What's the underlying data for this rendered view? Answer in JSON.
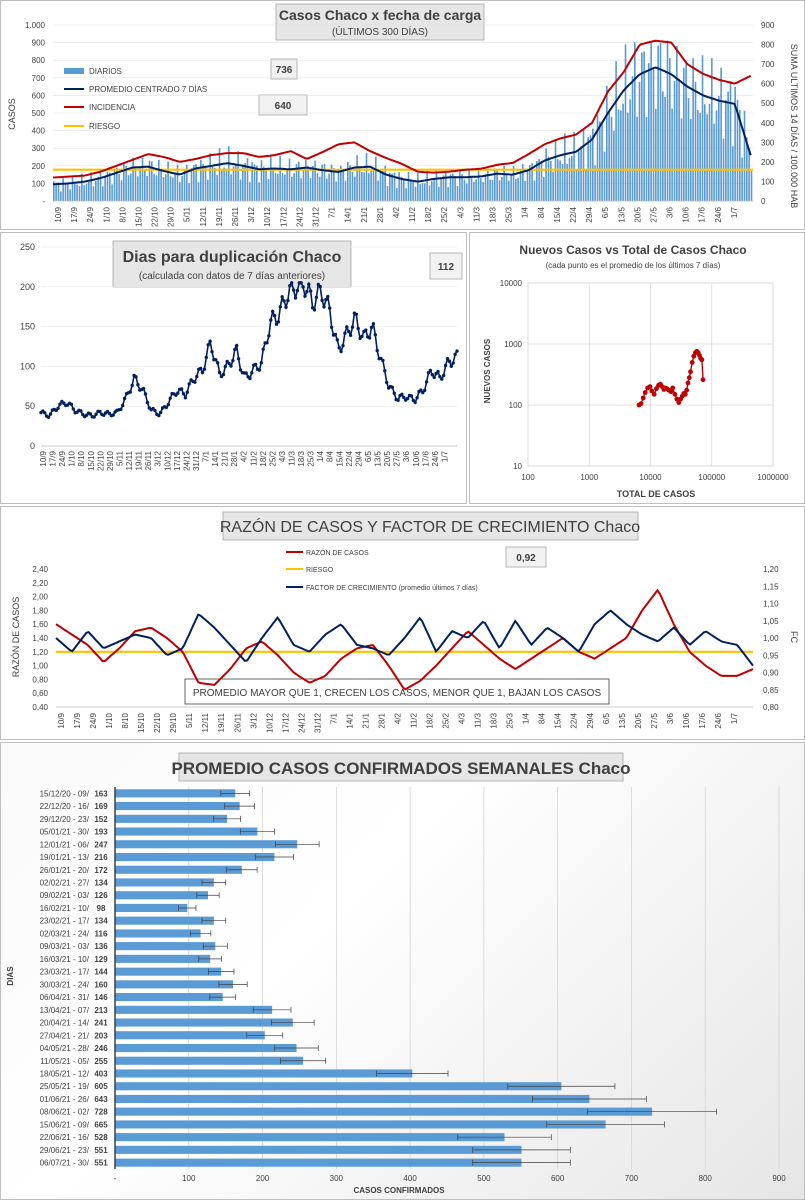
{
  "chart_data": [
    {
      "type": "bar",
      "title": "Casos  Chaco  x fecha de carga",
      "subtitle": "(ÚLTIMOS 300 DÍAS)",
      "ylabel": "CASOS",
      "y2label": "SUMA  ULTIMOS 14 DÍAS / 100.000 HAB",
      "ylim": [
        0,
        1000
      ],
      "y2lim": [
        0,
        900
      ],
      "yticks": [
        "-",
        "100",
        "200",
        "300",
        "400",
        "500",
        "600",
        "700",
        "800",
        "900",
        "1.000"
      ],
      "y2ticks": [
        "0",
        "100",
        "200",
        "300",
        "400",
        "500",
        "600",
        "700",
        "800",
        "900"
      ],
      "xticks": [
        "10/9",
        "17/9",
        "24/9",
        "1/10",
        "8/10",
        "15/10",
        "22/10",
        "29/10",
        "5/11",
        "12/11",
        "19/11",
        "26/11",
        "3/12",
        "10/12",
        "17/12",
        "24/12",
        "31/12",
        "7/1",
        "14/1",
        "21/1",
        "28/1",
        "4/2",
        "11/2",
        "18/2",
        "25/2",
        "4/3",
        "11/3",
        "18/3",
        "25/3",
        "1/4",
        "8/4",
        "15/4",
        "22/4",
        "29/4",
        "6/5",
        "13/5",
        "20/5",
        "27/5",
        "3/6",
        "10/6",
        "17/6",
        "24/6",
        "1/7"
      ],
      "legend": [
        "DIARIOS",
        "PROMEDIO CENTRADO 7 DÍAS",
        "INCIDENCIA",
        "RIESGO"
      ],
      "value_labels": [
        "736",
        "640"
      ],
      "riesgo": 160,
      "series_weekly": {
        "promedio": [
          95,
          100,
          110,
          130,
          160,
          190,
          195,
          170,
          150,
          185,
          200,
          215,
          200,
          180,
          185,
          180,
          190,
          175,
          165,
          190,
          195,
          150,
          125,
          110,
          125,
          135,
          135,
          140,
          155,
          150,
          175,
          230,
          260,
          280,
          350,
          500,
          630,
          720,
          760,
          720,
          650,
          600,
          570,
          552,
          260
        ],
        "incidencia": [
          120,
          125,
          130,
          150,
          180,
          210,
          240,
          225,
          200,
          215,
          235,
          245,
          245,
          225,
          235,
          255,
          215,
          250,
          290,
          300,
          255,
          220,
          190,
          150,
          145,
          150,
          160,
          165,
          185,
          195,
          240,
          290,
          320,
          340,
          400,
          560,
          660,
          800,
          820,
          810,
          700,
          650,
          620,
          600,
          640
        ]
      },
      "colors": {
        "diarios": "#5b9bd5",
        "promedio": "#002060",
        "incidencia": "#c00000",
        "riesgo": "#ffc000"
      }
    },
    {
      "type": "line",
      "title": "Dias para duplicación Chaco",
      "subtitle": "(calculada con datos de 7 días anteriores)",
      "ylim": [
        0,
        250
      ],
      "yticks": [
        "0",
        "50",
        "100",
        "150",
        "200",
        "250"
      ],
      "value_label": "112",
      "xticks": [
        "10/9",
        "17/9",
        "24/9",
        "1/10",
        "8/10",
        "15/10",
        "22/10",
        "29/10",
        "5/11",
        "12/11",
        "19/11",
        "26/11",
        "3/12",
        "10/12",
        "17/12",
        "24/12",
        "31/12",
        "7/1",
        "14/1",
        "21/1",
        "28/1",
        "4/2",
        "11/2",
        "18/2",
        "25/2",
        "4/3",
        "11/3",
        "18/3",
        "25/3",
        "1/4",
        "8/4",
        "15/4",
        "22/4",
        "29/4",
        "6/5",
        "13/5",
        "20/5",
        "27/5",
        "3/6",
        "10/6",
        "17/6",
        "24/6",
        "1/7"
      ],
      "values": [
        42,
        38,
        50,
        55,
        45,
        40,
        38,
        42,
        40,
        42,
        60,
        85,
        70,
        45,
        40,
        55,
        70,
        65,
        85,
        95,
        130,
        90,
        100,
        120,
        85,
        95,
        105,
        155,
        165,
        190,
        200,
        205,
        180,
        195,
        170,
        120,
        140,
        160,
        135,
        150,
        110,
        75,
        60,
        62,
        58,
        70,
        95,
        85,
        105,
        112
      ],
      "color": "#002060"
    },
    {
      "type": "scatter",
      "title": "Nuevos Casos vs Total de Casos Chaco",
      "subtitle": "(cada punto es el promedio de los últimos 7 días)",
      "xlabel": "TOTAL DE CASOS",
      "ylabel": "NUEVOS  CASOS",
      "xscale": "log",
      "yscale": "log",
      "xticks": [
        "100",
        "1000",
        "10000",
        "100000",
        "1000000"
      ],
      "yticks": [
        "10",
        "100",
        "1000",
        "10000"
      ],
      "x": [
        6500,
        7000,
        7600,
        8200,
        9000,
        9800,
        10500,
        11500,
        12500,
        13500,
        14500,
        15500,
        16500,
        17500,
        18500,
        20000,
        21500,
        23000,
        25000,
        27000,
        29000,
        31000,
        33000,
        35000,
        37000,
        39000,
        41000,
        43000,
        45000,
        48000,
        51000,
        54000,
        57000,
        60000,
        63000,
        66000,
        69000,
        72000
      ],
      "y": [
        100,
        105,
        130,
        160,
        190,
        200,
        170,
        150,
        185,
        210,
        220,
        200,
        180,
        190,
        185,
        175,
        165,
        190,
        150,
        125,
        110,
        125,
        140,
        155,
        150,
        175,
        230,
        280,
        350,
        500,
        630,
        720,
        760,
        720,
        650,
        580,
        550,
        260
      ],
      "color": "#c00000"
    },
    {
      "type": "line",
      "title": "RAZÓN DE CASOS Y FACTOR DE CRECIMIENTO Chaco",
      "ylabel": "RAZÓN DE CASOS",
      "y2label": "FC",
      "ylim": [
        0.4,
        2.4
      ],
      "y2lim": [
        0.8,
        1.2
      ],
      "yticks": [
        "0,40",
        "0,60",
        "0,80",
        "1,00",
        "1,20",
        "1,40",
        "1,60",
        "1,80",
        "2,00",
        "2,20",
        "2,40"
      ],
      "y2ticks": [
        "0,80",
        "0,85",
        "0,90",
        "0,95",
        "1,00",
        "1,05",
        "1,10",
        "1,15",
        "1,20"
      ],
      "xticks": [
        "10/9",
        "17/9",
        "24/9",
        "1/10",
        "8/10",
        "15/10",
        "22/10",
        "29/10",
        "5/11",
        "12/11",
        "19/11",
        "26/11",
        "3/12",
        "10/12",
        "17/12",
        "24/12",
        "31/12",
        "7/1",
        "14/1",
        "21/1",
        "28/1",
        "4/2",
        "11/2",
        "18/2",
        "25/2",
        "4/3",
        "11/3",
        "18/3",
        "25/3",
        "1/4",
        "8/4",
        "15/4",
        "22/4",
        "29/4",
        "6/5",
        "13/5",
        "20/5",
        "27/5",
        "3/6",
        "10/6",
        "17/6",
        "24/6",
        "1/7"
      ],
      "legend": [
        "RAZÓN DE CASOS",
        "RIESGO",
        "FACTOR DE CRECIMIENTO (promedio últimos 7 días)"
      ],
      "value_label": "0,92",
      "annotation": "PROMEDIO MAYOR QUE 1, CRECEN LOS CASOS, MENOR QUE 1, BAJAN LOS CASOS",
      "riesgo": 1.2,
      "razon": [
        1.6,
        1.45,
        1.3,
        1.05,
        1.25,
        1.5,
        1.55,
        1.4,
        1.2,
        0.75,
        0.72,
        0.95,
        1.25,
        1.35,
        1.15,
        0.9,
        0.75,
        0.85,
        1.1,
        1.25,
        1.3,
        1.0,
        0.65,
        0.78,
        1.0,
        1.25,
        1.5,
        1.3,
        1.1,
        0.95,
        1.1,
        1.25,
        1.4,
        1.2,
        1.1,
        1.25,
        1.4,
        1.8,
        2.1,
        1.6,
        1.2,
        1.0,
        0.85,
        0.85,
        0.95
      ],
      "fc": [
        1.0,
        0.96,
        1.02,
        0.97,
        0.99,
        1.01,
        1.0,
        0.95,
        0.97,
        1.07,
        1.03,
        0.98,
        0.93,
        1.0,
        1.06,
        0.98,
        0.96,
        1.01,
        1.04,
        0.98,
        0.97,
        0.95,
        1.0,
        1.06,
        0.96,
        1.02,
        1.0,
        1.05,
        0.97,
        1.05,
        0.98,
        1.03,
        1.0,
        0.96,
        1.04,
        1.08,
        1.04,
        1.01,
        0.99,
        1.03,
        0.98,
        1.02,
        0.99,
        0.98,
        0.92
      ],
      "colors": {
        "razon": "#c00000",
        "riesgo": "#ffc000",
        "fc": "#002060"
      }
    },
    {
      "type": "bar",
      "orientation": "horizontal",
      "title": "PROMEDIO CASOS CONFIRMADOS SEMANALES Chaco",
      "xlabel": "CASOS CONFIRMADOS",
      "ylabel": "DIAS",
      "xlim": [
        0,
        900
      ],
      "xticks": [
        "-",
        "100",
        "200",
        "300",
        "400",
        "500",
        "600",
        "700",
        "800",
        "900"
      ],
      "categories": [
        "15/12/20 - 09/12/20",
        "22/12/20 - 16/12/20",
        "29/12/20 - 23/12/20",
        "05/01/21 - 30/12/20",
        "12/01/21 - 06/01/21",
        "19/01/21 - 13/01/21",
        "26/01/21 - 20/01/21",
        "02/02/21 - 27/01/21",
        "09/02/21 - 03/02/21",
        "16/02/21 - 10/02/21",
        "23/02/21 - 17/02/21",
        "02/03/21 - 24/02/21",
        "09/03/21 - 03/03/21",
        "16/03/21 - 10/03/21",
        "23/03/21 - 17/03/21",
        "30/03/21 - 24/03/21",
        "06/04/21 - 31/03/21",
        "13/04/21 - 07/04/21",
        "20/04/21 - 14/04/21",
        "27/04/21 - 21/04/21",
        "04/05/21 - 28/04/21",
        "11/05/21 - 05/05/21",
        "18/05/21 - 12/05/21",
        "25/05/21 - 19/05/21",
        "01/06/21 - 26/05/21",
        "08/06/21 - 02/06/21",
        "15/06/21 - 09/06/21",
        "22/06/21 - 16/06/21",
        "29/06/21 - 23/06/21",
        "06/07/21 - 30/06/21"
      ],
      "values": [
        163,
        169,
        152,
        193,
        247,
        216,
        172,
        134,
        126,
        98,
        134,
        116,
        136,
        129,
        144,
        160,
        146,
        213,
        241,
        203,
        246,
        255,
        403,
        605,
        643,
        728,
        665,
        528,
        551,
        551
      ],
      "value_labels": [
        "163",
        "169",
        "152",
        "193",
        "247",
        "216",
        "172",
        "134",
        "126",
        "98",
        "134",
        "116",
        "136",
        "129",
        "144",
        "160",
        "146",
        "213",
        "241",
        "203",
        "246",
        "255",
        "403",
        "605",
        "643",
        "728",
        "665",
        "528",
        "551",
        "551"
      ],
      "color": "#5b9bd5"
    }
  ]
}
